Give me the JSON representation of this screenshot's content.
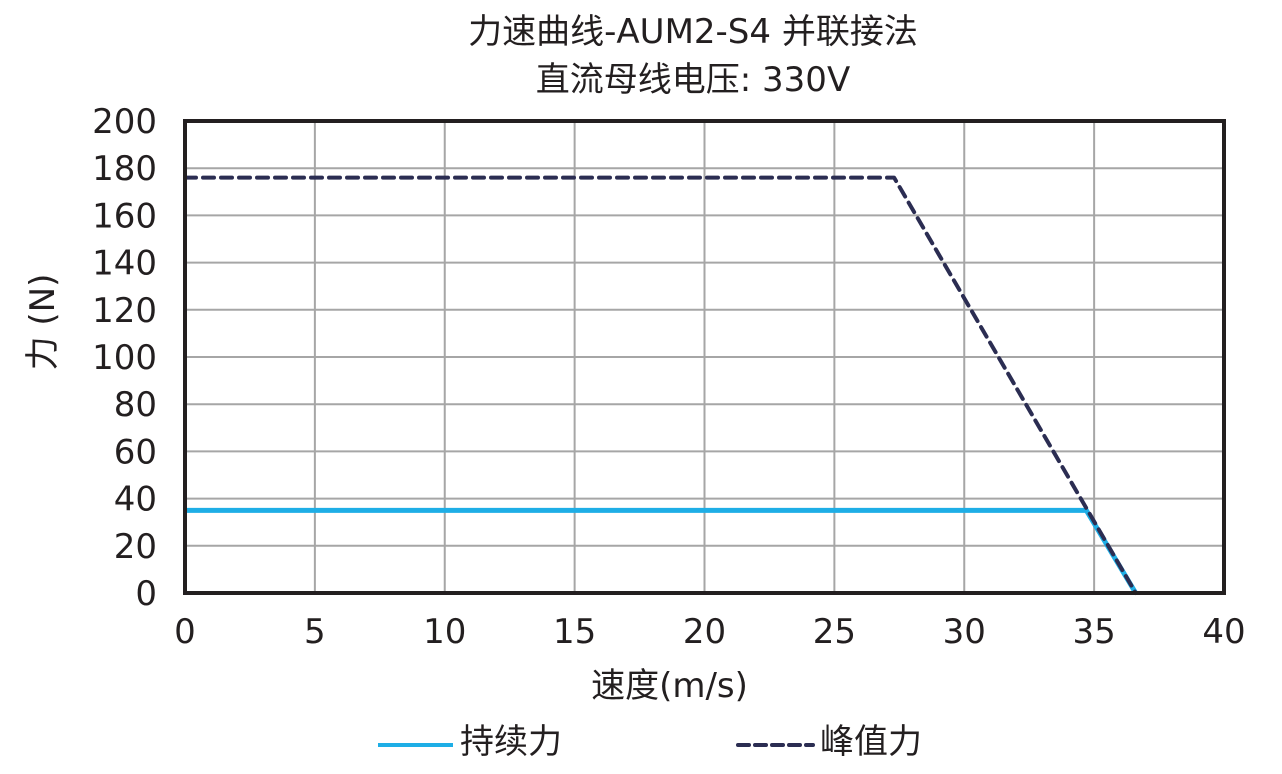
{
  "chart": {
    "title_line1": "力速曲线-AUM2-S4 并联接法",
    "title_line2": "直流母线电压: 330V",
    "xlabel": "速度(m/s)",
    "ylabel": "力 (N)",
    "legend": {
      "continuous": "持续力",
      "peak": "峰值力"
    },
    "colors": {
      "continuous": "#1eaee6",
      "peak": "#2b2d52",
      "grid": "#a6a6a6",
      "axis": "#231f20"
    }
  },
  "chart_data": {
    "type": "line",
    "title": "力速曲线-AUM2-S4 并联接法 / 直流母线电压: 330V",
    "xlabel": "速度(m/s)",
    "ylabel": "力 (N)",
    "xlim": [
      0,
      40
    ],
    "ylim": [
      0,
      200
    ],
    "xticks": [
      0,
      5,
      10,
      15,
      20,
      25,
      30,
      35,
      40
    ],
    "yticks": [
      0,
      20,
      40,
      60,
      80,
      100,
      120,
      140,
      160,
      180,
      200
    ],
    "grid": true,
    "legend_position": "bottom",
    "series": [
      {
        "name": "持续力",
        "style": "solid",
        "color": "#1eaee6",
        "x": [
          0,
          34.7,
          36.6
        ],
        "y": [
          35,
          35,
          0
        ]
      },
      {
        "name": "峰值力",
        "style": "dashed",
        "color": "#2b2d52",
        "x": [
          0,
          27.3,
          36.6
        ],
        "y": [
          176,
          176,
          0
        ]
      }
    ]
  }
}
